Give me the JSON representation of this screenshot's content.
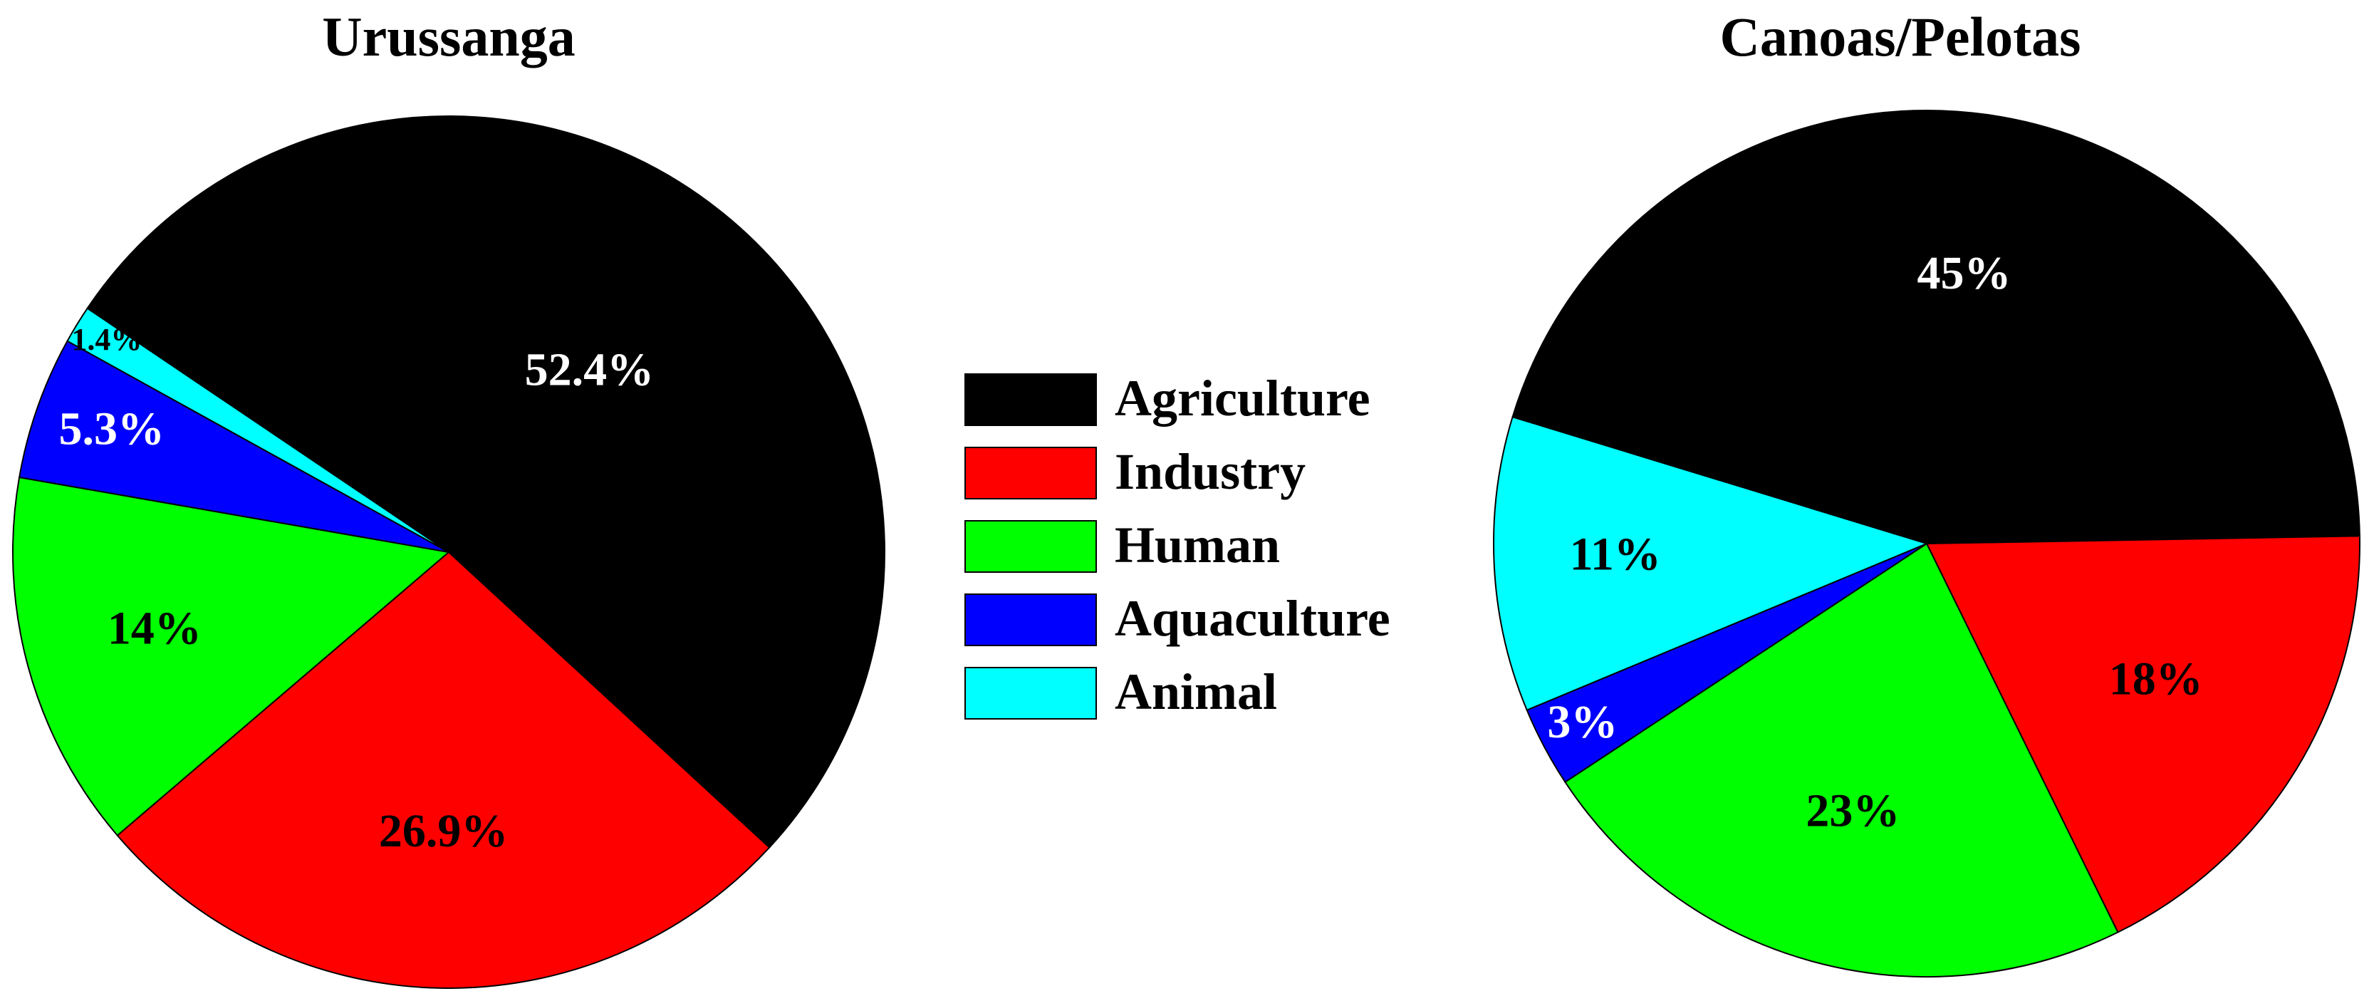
{
  "chart_data": [
    {
      "type": "pie",
      "title": "Urussanga",
      "categories": [
        "Agriculture",
        "Industry",
        "Human",
        "Aquaculture",
        "Animal"
      ],
      "values": [
        52.4,
        26.9,
        14,
        5.3,
        1.4
      ],
      "labels": [
        "52.4%",
        "26.9%",
        "14%",
        "5.3%",
        "1.4%"
      ],
      "colors": [
        "#000000",
        "#ff0000",
        "#00ff00",
        "#0000ff",
        "#00ffff"
      ],
      "label_colors": [
        "#ffffff",
        "#000000",
        "#000000",
        "#ffffff",
        "#000000"
      ]
    },
    {
      "type": "pie",
      "title": "Canoas/Pelotas",
      "categories": [
        "Agriculture",
        "Industry",
        "Human",
        "Aquaculture",
        "Animal"
      ],
      "values": [
        45,
        18,
        23,
        3,
        11
      ],
      "labels": [
        "45%",
        "18%",
        "23%",
        "3%",
        "11%"
      ],
      "colors": [
        "#000000",
        "#ff0000",
        "#00ff00",
        "#0000ff",
        "#00ffff"
      ],
      "label_colors": [
        "#ffffff",
        "#000000",
        "#000000",
        "#ffffff",
        "#000000"
      ]
    }
  ],
  "legend": {
    "placement": "center",
    "items": [
      {
        "label": "Agriculture",
        "color": "#000000"
      },
      {
        "label": "Industry",
        "color": "#ff0000"
      },
      {
        "label": "Human",
        "color": "#00ff00"
      },
      {
        "label": "Aquaculture",
        "color": "#0000ff"
      },
      {
        "label": "Animal",
        "color": "#00ffff"
      }
    ]
  }
}
